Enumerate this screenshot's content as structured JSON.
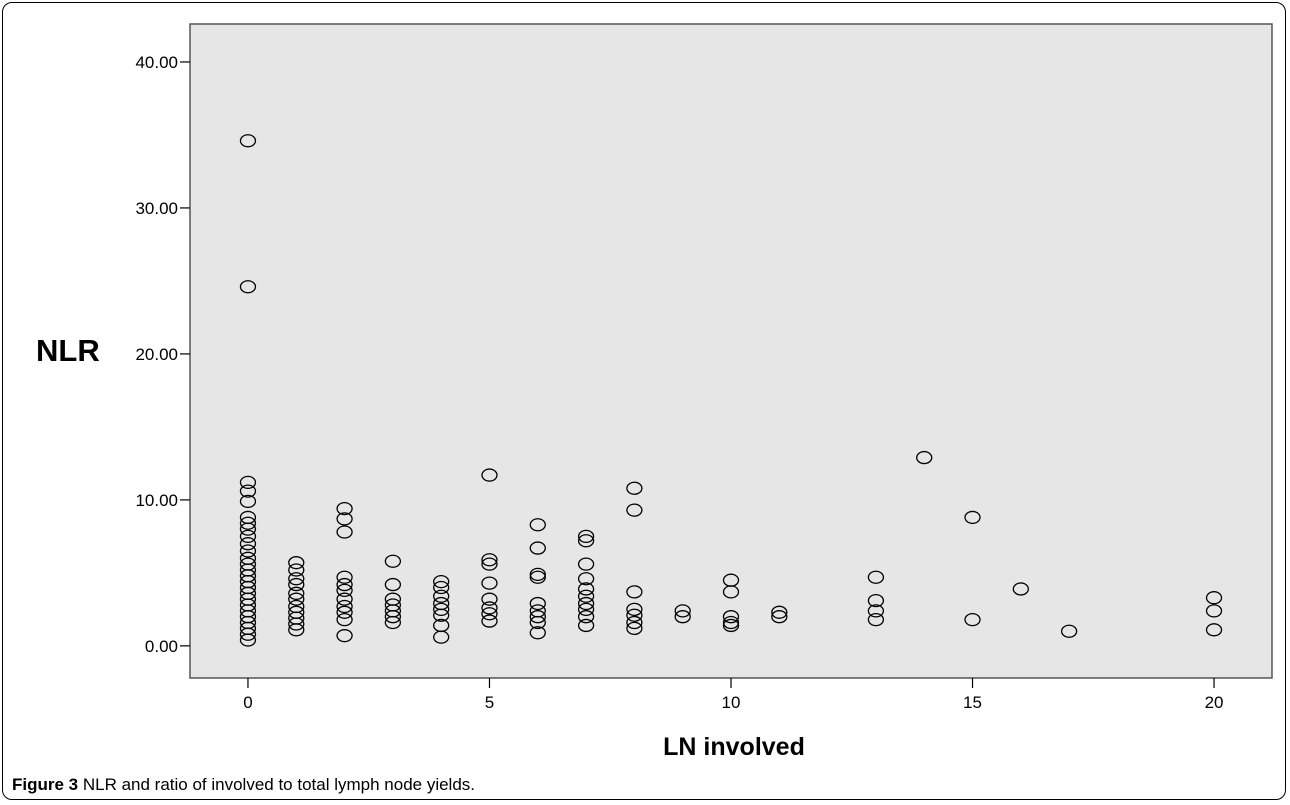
{
  "figure": {
    "caption_label": "Figure 3",
    "caption_text": " NLR and ratio of involved to total lymph node yields."
  },
  "chart_data": {
    "type": "scatter",
    "xlabel": "LN involved",
    "ylabel": "NLR",
    "xlim": [
      -1.2,
      21.2
    ],
    "ylim": [
      -2.2,
      42.6
    ],
    "xticks": [
      0,
      5,
      10,
      15,
      20
    ],
    "xtick_labels": [
      "0",
      "5",
      "10",
      "15",
      "20"
    ],
    "yticks": [
      0,
      10,
      20,
      30,
      40
    ],
    "ytick_labels": [
      "0.00",
      "10.00",
      "20.00",
      "30.00",
      "40.00"
    ],
    "grid": false,
    "legend": "none",
    "colors": {
      "plot_background": "#e6e6e6",
      "marker_edge": "#000000"
    },
    "points": [
      [
        0,
        34.6
      ],
      [
        0,
        24.6
      ],
      [
        0,
        11.2
      ],
      [
        0,
        10.6
      ],
      [
        0,
        9.9
      ],
      [
        0,
        8.8
      ],
      [
        0,
        8.4
      ],
      [
        0,
        8.0
      ],
      [
        0,
        7.5
      ],
      [
        0,
        7.0
      ],
      [
        0,
        6.5
      ],
      [
        0,
        6.0
      ],
      [
        0,
        5.6
      ],
      [
        0,
        5.2
      ],
      [
        0,
        4.8
      ],
      [
        0,
        4.4
      ],
      [
        0,
        4.0
      ],
      [
        0,
        3.6
      ],
      [
        0,
        3.2
      ],
      [
        0,
        2.8
      ],
      [
        0,
        2.4
      ],
      [
        0,
        2.0
      ],
      [
        0,
        1.6
      ],
      [
        0,
        1.2
      ],
      [
        0,
        0.8
      ],
      [
        0,
        0.4
      ],
      [
        1,
        5.7
      ],
      [
        1,
        5.2
      ],
      [
        1,
        4.6
      ],
      [
        1,
        4.2
      ],
      [
        1,
        3.6
      ],
      [
        1,
        3.2
      ],
      [
        1,
        2.7
      ],
      [
        1,
        2.3
      ],
      [
        1,
        1.9
      ],
      [
        1,
        1.5
      ],
      [
        1,
        1.1
      ],
      [
        2,
        9.4
      ],
      [
        2,
        8.7
      ],
      [
        2,
        7.8
      ],
      [
        2,
        4.7
      ],
      [
        2,
        4.2
      ],
      [
        2,
        3.8
      ],
      [
        2,
        3.2
      ],
      [
        2,
        2.7
      ],
      [
        2,
        2.3
      ],
      [
        2,
        1.8
      ],
      [
        2,
        0.7
      ],
      [
        3,
        5.8
      ],
      [
        3,
        4.2
      ],
      [
        3,
        3.2
      ],
      [
        3,
        2.8
      ],
      [
        3,
        2.4
      ],
      [
        3,
        2.0
      ],
      [
        3,
        1.6
      ],
      [
        4,
        4.4
      ],
      [
        4,
        4.0
      ],
      [
        4,
        3.4
      ],
      [
        4,
        2.9
      ],
      [
        4,
        2.5
      ],
      [
        4,
        2.1
      ],
      [
        4,
        1.4
      ],
      [
        4,
        0.6
      ],
      [
        5,
        11.7
      ],
      [
        5,
        5.9
      ],
      [
        5,
        5.6
      ],
      [
        5,
        4.3
      ],
      [
        5,
        3.2
      ],
      [
        5,
        2.6
      ],
      [
        5,
        2.2
      ],
      [
        5,
        1.7
      ],
      [
        6,
        8.3
      ],
      [
        6,
        6.7
      ],
      [
        6,
        4.9
      ],
      [
        6,
        4.7
      ],
      [
        6,
        2.9
      ],
      [
        6,
        2.4
      ],
      [
        6,
        2.0
      ],
      [
        6,
        1.6
      ],
      [
        6,
        0.9
      ],
      [
        7,
        7.5
      ],
      [
        7,
        7.2
      ],
      [
        7,
        5.6
      ],
      [
        7,
        4.6
      ],
      [
        7,
        3.9
      ],
      [
        7,
        3.4
      ],
      [
        7,
        2.9
      ],
      [
        7,
        2.5
      ],
      [
        7,
        2.0
      ],
      [
        7,
        1.4
      ],
      [
        8,
        10.8
      ],
      [
        8,
        9.3
      ],
      [
        8,
        3.7
      ],
      [
        8,
        2.5
      ],
      [
        8,
        2.1
      ],
      [
        8,
        1.6
      ],
      [
        8,
        1.2
      ],
      [
        9,
        2.4
      ],
      [
        9,
        2.0
      ],
      [
        10,
        4.5
      ],
      [
        10,
        3.7
      ],
      [
        10,
        2.0
      ],
      [
        10,
        1.6
      ],
      [
        10,
        1.4
      ],
      [
        11,
        2.3
      ],
      [
        11,
        2.0
      ],
      [
        13,
        4.7
      ],
      [
        13,
        3.1
      ],
      [
        13,
        2.4
      ],
      [
        13,
        1.8
      ],
      [
        14,
        12.9
      ],
      [
        15,
        8.8
      ],
      [
        15,
        1.8
      ],
      [
        16,
        3.9
      ],
      [
        17,
        1.0
      ],
      [
        20,
        3.3
      ],
      [
        20,
        2.4
      ],
      [
        20,
        1.1
      ]
    ]
  }
}
